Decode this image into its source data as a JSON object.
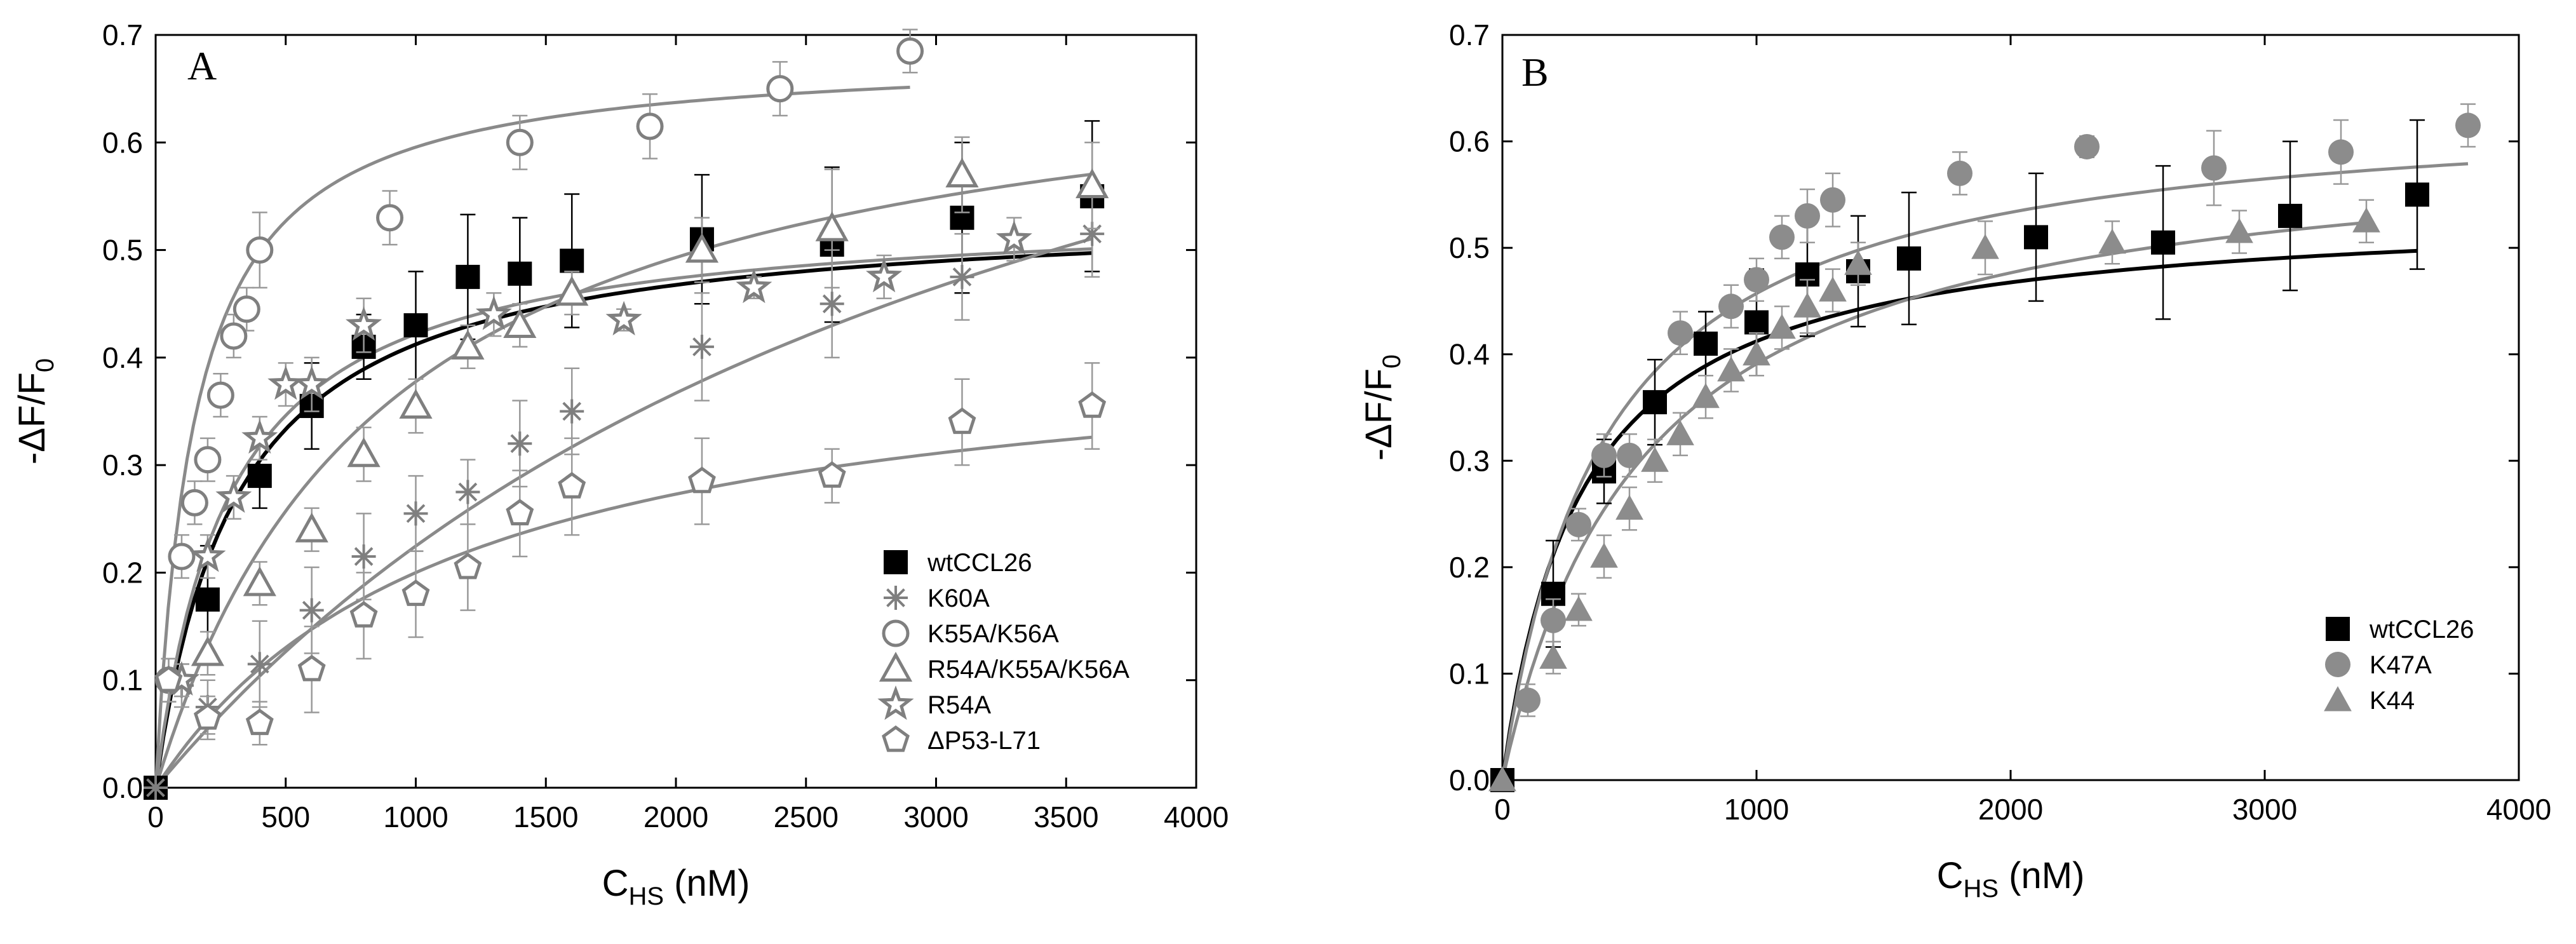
{
  "chart_data": [
    {
      "type": "scatter",
      "panel_label": "A",
      "xlabel_main": "C",
      "xlabel_sub": "HS",
      "xlabel_unit": " (nM)",
      "ylabel_main": "-ΔF/F",
      "ylabel_sub": "0",
      "xlim": [
        0,
        4000
      ],
      "ylim": [
        0,
        0.7
      ],
      "xticks": [
        0,
        500,
        1000,
        1500,
        2000,
        2500,
        3000,
        3500,
        4000
      ],
      "yticks": [
        0.0,
        0.1,
        0.2,
        0.3,
        0.4,
        0.5,
        0.6,
        0.7
      ],
      "legend_position": "bottom-right",
      "series": [
        {
          "name": "wtCCL26",
          "marker": "square-filled",
          "color": "#000000",
          "fit_color": "#000000",
          "fit": {
            "bmax": 0.54,
            "kd": 310,
            "xmax": 3600
          },
          "points": [
            {
              "x": 0,
              "y": 0.0,
              "err": 0
            },
            {
              "x": 200,
              "y": 0.175,
              "err": 0.05
            },
            {
              "x": 400,
              "y": 0.29,
              "err": 0.03
            },
            {
              "x": 600,
              "y": 0.355,
              "err": 0.04
            },
            {
              "x": 800,
              "y": 0.41,
              "err": 0.03
            },
            {
              "x": 1000,
              "y": 0.43,
              "err": 0.05
            },
            {
              "x": 1200,
              "y": 0.475,
              "err": 0.058
            },
            {
              "x": 1400,
              "y": 0.478,
              "err": 0.052
            },
            {
              "x": 1600,
              "y": 0.49,
              "err": 0.062
            },
            {
              "x": 2100,
              "y": 0.51,
              "err": 0.06
            },
            {
              "x": 2600,
              "y": 0.505,
              "err": 0.072
            },
            {
              "x": 3100,
              "y": 0.53,
              "err": 0.07
            },
            {
              "x": 3600,
              "y": 0.55,
              "err": 0.07
            }
          ]
        },
        {
          "name": "K60A",
          "marker": "asterisk",
          "color": "#7f7f7f",
          "fit_color": "#8a8a8a",
          "fit": {
            "bmax": 1.0,
            "kd": 3450,
            "xmax": 3600
          },
          "points": [
            {
              "x": 0,
              "y": 0.0,
              "err": 0
            },
            {
              "x": 100,
              "y": 0.095,
              "err": 0.02
            },
            {
              "x": 200,
              "y": 0.075,
              "err": 0.025
            },
            {
              "x": 400,
              "y": 0.115,
              "err": 0.04
            },
            {
              "x": 600,
              "y": 0.165,
              "err": 0.04
            },
            {
              "x": 800,
              "y": 0.215,
              "err": 0.04
            },
            {
              "x": 1000,
              "y": 0.255,
              "err": 0.035
            },
            {
              "x": 1200,
              "y": 0.275,
              "err": 0.03
            },
            {
              "x": 1400,
              "y": 0.32,
              "err": 0.04
            },
            {
              "x": 1600,
              "y": 0.35,
              "err": 0.04
            },
            {
              "x": 2100,
              "y": 0.41,
              "err": 0.05
            },
            {
              "x": 2600,
              "y": 0.45,
              "err": 0.05
            },
            {
              "x": 3100,
              "y": 0.475,
              "err": 0.04
            },
            {
              "x": 3600,
              "y": 0.515,
              "err": 0.04
            }
          ]
        },
        {
          "name": "K55A/K56A",
          "marker": "circle-open",
          "color": "#7f7f7f",
          "fit_color": "#8a8a8a",
          "fit": {
            "bmax": 0.685,
            "kd": 150,
            "xmax": 2900
          },
          "points": [
            {
              "x": 50,
              "y": 0.1,
              "err": 0.02
            },
            {
              "x": 100,
              "y": 0.215,
              "err": 0.02
            },
            {
              "x": 150,
              "y": 0.265,
              "err": 0.02
            },
            {
              "x": 200,
              "y": 0.305,
              "err": 0.02
            },
            {
              "x": 250,
              "y": 0.365,
              "err": 0.02
            },
            {
              "x": 300,
              "y": 0.42,
              "err": 0.02
            },
            {
              "x": 350,
              "y": 0.445,
              "err": 0.02
            },
            {
              "x": 400,
              "y": 0.5,
              "err": 0.035
            },
            {
              "x": 900,
              "y": 0.53,
              "err": 0.025
            },
            {
              "x": 1400,
              "y": 0.6,
              "err": 0.025
            },
            {
              "x": 1900,
              "y": 0.615,
              "err": 0.03
            },
            {
              "x": 2400,
              "y": 0.65,
              "err": 0.025
            },
            {
              "x": 2900,
              "y": 0.685,
              "err": 0.02
            }
          ]
        },
        {
          "name": "R54A/K55A/K56A",
          "marker": "triangle-open",
          "color": "#7f7f7f",
          "fit_color": "#8a8a8a",
          "fit": {
            "bmax": 0.71,
            "kd": 880,
            "xmax": 3600
          },
          "points": [
            {
              "x": 200,
              "y": 0.125,
              "err": 0.02
            },
            {
              "x": 400,
              "y": 0.19,
              "err": 0.02
            },
            {
              "x": 600,
              "y": 0.24,
              "err": 0.02
            },
            {
              "x": 800,
              "y": 0.31,
              "err": 0.025
            },
            {
              "x": 1000,
              "y": 0.355,
              "err": 0.025
            },
            {
              "x": 1200,
              "y": 0.41,
              "err": 0.02
            },
            {
              "x": 1400,
              "y": 0.43,
              "err": 0.02
            },
            {
              "x": 1600,
              "y": 0.46,
              "err": 0.02
            },
            {
              "x": 2100,
              "y": 0.5,
              "err": 0.03
            },
            {
              "x": 2600,
              "y": 0.52,
              "err": 0.055
            },
            {
              "x": 3100,
              "y": 0.57,
              "err": 0.035
            },
            {
              "x": 3600,
              "y": 0.56,
              "err": 0.04
            }
          ]
        },
        {
          "name": "R54A",
          "marker": "star-open",
          "color": "#7f7f7f",
          "fit_color": "#8a8a8a",
          "fit": {
            "bmax": 0.54,
            "kd": 280,
            "xmax": 3600
          },
          "points": [
            {
              "x": 100,
              "y": 0.1,
              "err": 0.015
            },
            {
              "x": 200,
              "y": 0.215,
              "err": 0.02
            },
            {
              "x": 300,
              "y": 0.27,
              "err": 0.02
            },
            {
              "x": 400,
              "y": 0.325,
              "err": 0.02
            },
            {
              "x": 500,
              "y": 0.375,
              "err": 0.02
            },
            {
              "x": 600,
              "y": 0.375,
              "err": 0.025
            },
            {
              "x": 800,
              "y": 0.43,
              "err": 0.025
            },
            {
              "x": 1300,
              "y": 0.44,
              "err": 0.02
            },
            {
              "x": 1800,
              "y": 0.435,
              "err": 0.01
            },
            {
              "x": 2300,
              "y": 0.465,
              "err": 0.01
            },
            {
              "x": 2800,
              "y": 0.475,
              "err": 0.02
            },
            {
              "x": 3300,
              "y": 0.51,
              "err": 0.02
            }
          ]
        },
        {
          "name": "ΔP53-L71",
          "marker": "pentagon-open",
          "color": "#7f7f7f",
          "fit_color": "#8a8a8a",
          "fit": {
            "bmax": 0.43,
            "kd": 1150,
            "xmax": 3600
          },
          "points": [
            {
              "x": 50,
              "y": 0.1,
              "err": 0.02
            },
            {
              "x": 200,
              "y": 0.065,
              "err": 0.02
            },
            {
              "x": 400,
              "y": 0.06,
              "err": 0.02
            },
            {
              "x": 600,
              "y": 0.11,
              "err": 0.04
            },
            {
              "x": 800,
              "y": 0.16,
              "err": 0.04
            },
            {
              "x": 1000,
              "y": 0.18,
              "err": 0.04
            },
            {
              "x": 1200,
              "y": 0.205,
              "err": 0.04
            },
            {
              "x": 1400,
              "y": 0.255,
              "err": 0.04
            },
            {
              "x": 1600,
              "y": 0.28,
              "err": 0.045
            },
            {
              "x": 2100,
              "y": 0.285,
              "err": 0.04
            },
            {
              "x": 2600,
              "y": 0.29,
              "err": 0.025
            },
            {
              "x": 3100,
              "y": 0.34,
              "err": 0.04
            },
            {
              "x": 3600,
              "y": 0.355,
              "err": 0.04
            }
          ]
        }
      ]
    },
    {
      "type": "scatter",
      "panel_label": "B",
      "xlabel_main": "C",
      "xlabel_sub": "HS",
      "xlabel_unit": " (nM)",
      "ylabel_main": "-ΔF/F",
      "ylabel_sub": "0",
      "xlim": [
        0,
        4000
      ],
      "ylim": [
        0,
        0.7
      ],
      "xticks": [
        0,
        1000,
        2000,
        3000,
        4000
      ],
      "yticks": [
        0.0,
        0.1,
        0.2,
        0.3,
        0.4,
        0.5,
        0.6,
        0.7
      ],
      "legend_position": "bottom-right",
      "series": [
        {
          "name": "wtCCL26",
          "marker": "square-filled",
          "color": "#000000",
          "fit_color": "#000000",
          "fit": {
            "bmax": 0.54,
            "kd": 310,
            "xmax": 3600
          },
          "points": [
            {
              "x": 0,
              "y": 0.0,
              "err": 0
            },
            {
              "x": 200,
              "y": 0.175,
              "err": 0.05
            },
            {
              "x": 400,
              "y": 0.29,
              "err": 0.03
            },
            {
              "x": 600,
              "y": 0.355,
              "err": 0.04
            },
            {
              "x": 800,
              "y": 0.41,
              "err": 0.03
            },
            {
              "x": 1000,
              "y": 0.43,
              "err": 0.05
            },
            {
              "x": 1200,
              "y": 0.475,
              "err": 0.058
            },
            {
              "x": 1400,
              "y": 0.478,
              "err": 0.052
            },
            {
              "x": 1600,
              "y": 0.49,
              "err": 0.062
            },
            {
              "x": 2100,
              "y": 0.51,
              "err": 0.06
            },
            {
              "x": 2600,
              "y": 0.505,
              "err": 0.072
            },
            {
              "x": 3100,
              "y": 0.53,
              "err": 0.07
            },
            {
              "x": 3600,
              "y": 0.55,
              "err": 0.07
            }
          ]
        },
        {
          "name": "K47A",
          "marker": "circle-filled",
          "color": "#8c8c8c",
          "fit_color": "#8a8a8a",
          "fit": {
            "bmax": 0.64,
            "kd": 400,
            "xmax": 3800
          },
          "points": [
            {
              "x": 100,
              "y": 0.075,
              "err": 0.015
            },
            {
              "x": 200,
              "y": 0.15,
              "err": 0.02
            },
            {
              "x": 300,
              "y": 0.24,
              "err": 0.015
            },
            {
              "x": 400,
              "y": 0.305,
              "err": 0.02
            },
            {
              "x": 500,
              "y": 0.305,
              "err": 0.02
            },
            {
              "x": 700,
              "y": 0.42,
              "err": 0.02
            },
            {
              "x": 900,
              "y": 0.445,
              "err": 0.02
            },
            {
              "x": 1000,
              "y": 0.47,
              "err": 0.02
            },
            {
              "x": 1100,
              "y": 0.51,
              "err": 0.02
            },
            {
              "x": 1200,
              "y": 0.53,
              "err": 0.025
            },
            {
              "x": 1300,
              "y": 0.545,
              "err": 0.025
            },
            {
              "x": 1800,
              "y": 0.57,
              "err": 0.02
            },
            {
              "x": 2300,
              "y": 0.595,
              "err": 0.01
            },
            {
              "x": 2800,
              "y": 0.575,
              "err": 0.035
            },
            {
              "x": 3300,
              "y": 0.59,
              "err": 0.03
            },
            {
              "x": 3800,
              "y": 0.615,
              "err": 0.02
            }
          ]
        },
        {
          "name": "K44",
          "marker": "triangle-filled",
          "color": "#8c8c8c",
          "fit_color": "#8a8a8a",
          "fit": {
            "bmax": 0.61,
            "kd": 560,
            "xmax": 3400
          },
          "points": [
            {
              "x": 0,
              "y": 0.0,
              "err": 0
            },
            {
              "x": 200,
              "y": 0.115,
              "err": 0.015
            },
            {
              "x": 300,
              "y": 0.16,
              "err": 0.015
            },
            {
              "x": 400,
              "y": 0.21,
              "err": 0.02
            },
            {
              "x": 500,
              "y": 0.255,
              "err": 0.02
            },
            {
              "x": 600,
              "y": 0.3,
              "err": 0.02
            },
            {
              "x": 700,
              "y": 0.325,
              "err": 0.02
            },
            {
              "x": 800,
              "y": 0.36,
              "err": 0.02
            },
            {
              "x": 900,
              "y": 0.385,
              "err": 0.02
            },
            {
              "x": 1000,
              "y": 0.4,
              "err": 0.02
            },
            {
              "x": 1100,
              "y": 0.425,
              "err": 0.02
            },
            {
              "x": 1200,
              "y": 0.445,
              "err": 0.025
            },
            {
              "x": 1300,
              "y": 0.46,
              "err": 0.02
            },
            {
              "x": 1400,
              "y": 0.485,
              "err": 0.02
            },
            {
              "x": 1900,
              "y": 0.5,
              "err": 0.025
            },
            {
              "x": 2400,
              "y": 0.505,
              "err": 0.02
            },
            {
              "x": 2900,
              "y": 0.515,
              "err": 0.02
            },
            {
              "x": 3400,
              "y": 0.525,
              "err": 0.02
            }
          ]
        }
      ]
    }
  ]
}
